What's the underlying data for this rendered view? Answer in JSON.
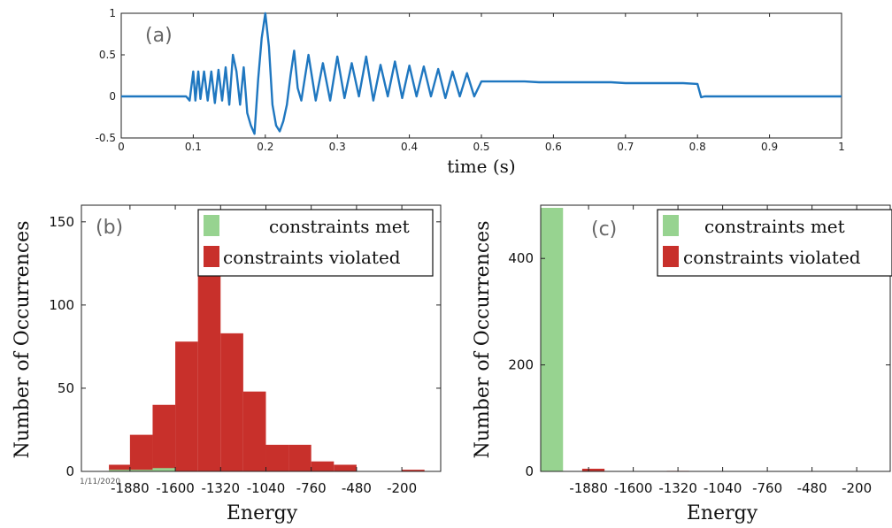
{
  "colors": {
    "line": "#1f77c0",
    "met": "#97d390",
    "violated": "#c8302b",
    "axis": "#222222"
  },
  "chart_data": [
    {
      "panel": "(a)",
      "type": "line",
      "xlabel": "time (s)",
      "ylabel": "",
      "xlim": [
        0,
        1
      ],
      "ylim": [
        -0.5,
        1
      ],
      "xticks": [
        "0",
        "0.1",
        "0.2",
        "0.3",
        "0.4",
        "0.5",
        "0.6",
        "0.7",
        "0.8",
        "0.9",
        "1"
      ],
      "yticks": [
        "-0.5",
        "0",
        "0.5",
        "1"
      ],
      "signal": {
        "x": [
          0,
          0.09,
          0.095,
          0.1,
          0.103,
          0.107,
          0.11,
          0.115,
          0.12,
          0.125,
          0.13,
          0.135,
          0.14,
          0.145,
          0.15,
          0.155,
          0.16,
          0.165,
          0.17,
          0.175,
          0.18,
          0.185,
          0.19,
          0.195,
          0.2,
          0.205,
          0.21,
          0.215,
          0.22,
          0.225,
          0.23,
          0.235,
          0.24,
          0.245,
          0.25,
          0.26,
          0.27,
          0.28,
          0.29,
          0.3,
          0.31,
          0.32,
          0.33,
          0.34,
          0.35,
          0.36,
          0.37,
          0.38,
          0.39,
          0.4,
          0.41,
          0.42,
          0.43,
          0.44,
          0.45,
          0.46,
          0.47,
          0.48,
          0.49,
          0.5,
          0.52,
          0.54,
          0.56,
          0.58,
          0.6,
          0.62,
          0.64,
          0.66,
          0.68,
          0.7,
          0.72,
          0.74,
          0.76,
          0.78,
          0.8,
          0.805,
          0.81,
          1
        ],
        "y": [
          0,
          0,
          -0.05,
          0.3,
          -0.05,
          0.3,
          -0.03,
          0.3,
          -0.05,
          0.3,
          -0.08,
          0.32,
          -0.05,
          0.35,
          -0.1,
          0.5,
          0.3,
          -0.1,
          0.35,
          -0.2,
          -0.35,
          -0.45,
          0.2,
          0.7,
          1.0,
          0.6,
          -0.1,
          -0.35,
          -0.42,
          -0.3,
          -0.1,
          0.25,
          0.55,
          0.1,
          -0.05,
          0.5,
          -0.05,
          0.4,
          -0.05,
          0.48,
          -0.02,
          0.4,
          0.0,
          0.48,
          -0.05,
          0.38,
          0.0,
          0.42,
          -0.02,
          0.37,
          0.0,
          0.36,
          0.0,
          0.33,
          -0.02,
          0.3,
          0.0,
          0.28,
          0.0,
          0.18,
          0.18,
          0.18,
          0.18,
          0.17,
          0.17,
          0.17,
          0.17,
          0.17,
          0.17,
          0.16,
          0.16,
          0.16,
          0.16,
          0.16,
          0.15,
          -0.01,
          0,
          0
        ]
      }
    },
    {
      "panel": "(b)",
      "type": "bar",
      "xlabel": "Energy",
      "ylabel": "Number of Occurrences",
      "xticks": [
        "-1880",
        "-1600",
        "-1320",
        "-1040",
        "-760",
        "-480",
        "-200"
      ],
      "yticks": [
        "0",
        "50",
        "100",
        "150"
      ],
      "xlim": [
        -2180,
        40
      ],
      "ylim": [
        0,
        160
      ],
      "bin_width": 140,
      "stamp": "1/11/2020",
      "legend": [
        "constraints met",
        "constraints violated"
      ],
      "series": [
        {
          "name": "constraints violated",
          "bins": [
            [
              -2010,
              4
            ],
            [
              -1880,
              22
            ],
            [
              -1740,
              40
            ],
            [
              -1600,
              78
            ],
            [
              -1460,
              118
            ],
            [
              -1320,
              83
            ],
            [
              -1180,
              48
            ],
            [
              -1040,
              16
            ],
            [
              -900,
              16
            ],
            [
              -760,
              6
            ],
            [
              -620,
              4
            ],
            [
              -480,
              0
            ],
            [
              -340,
              0
            ],
            [
              -200,
              1
            ]
          ]
        },
        {
          "name": "constraints met",
          "bins": [
            [
              -2010,
              1
            ],
            [
              -1880,
              1
            ],
            [
              -1740,
              2
            ],
            [
              -1600,
              0
            ]
          ]
        }
      ]
    },
    {
      "panel": "(c)",
      "type": "bar",
      "xlabel": "Energy",
      "ylabel": "Number of Occurrences",
      "xticks": [
        "-1880",
        "-1600",
        "-1320",
        "-1040",
        "-760",
        "-480",
        "-200"
      ],
      "yticks": [
        "0",
        "200",
        "400"
      ],
      "xlim": [
        -2180,
        10
      ],
      "ylim": [
        0,
        500
      ],
      "bin_width": 140,
      "legend": [
        "constraints met",
        "constraints violated"
      ],
      "series": [
        {
          "name": "constraints met",
          "bins": [
            [
              -2180,
              495
            ]
          ]
        },
        {
          "name": "constraints violated",
          "bins": [
            [
              -1920,
              5
            ],
            [
              -1390,
              1
            ]
          ]
        }
      ]
    }
  ]
}
